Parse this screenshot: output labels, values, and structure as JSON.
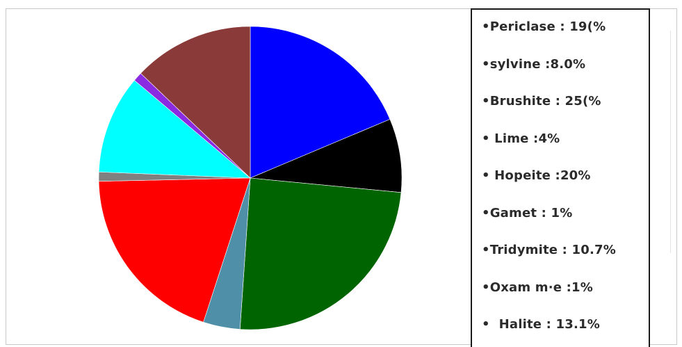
{
  "chart_data": {
    "type": "pie",
    "title": "",
    "slices": [
      {
        "label": "•Periclase : 19(%",
        "value": 19,
        "color": "#0000ff"
      },
      {
        "label": "•sylvine :8.0%",
        "value": 8.0,
        "color": "#000000"
      },
      {
        "label": "•Brushite : 25(%",
        "value": 25,
        "color": "#006400"
      },
      {
        "label": "• Lime :4%",
        "value": 4,
        "color": "#4f8fa8"
      },
      {
        "label": "• Hopeite :20%",
        "value": 20,
        "color": "#ff0000"
      },
      {
        "label": "•Gamet : 1%",
        "value": 1,
        "color": "#808080"
      },
      {
        "label": "•Tridymite : 10.7%",
        "value": 10.7,
        "color": "#00ffff"
      },
      {
        "label": "•Oxam m·e :1%",
        "value": 1,
        "color": "#8a2be2"
      },
      {
        "label": "•  Halite : 13.1%",
        "value": 13.1,
        "color": "#8b3a3a"
      }
    ],
    "legend_position": "right"
  }
}
